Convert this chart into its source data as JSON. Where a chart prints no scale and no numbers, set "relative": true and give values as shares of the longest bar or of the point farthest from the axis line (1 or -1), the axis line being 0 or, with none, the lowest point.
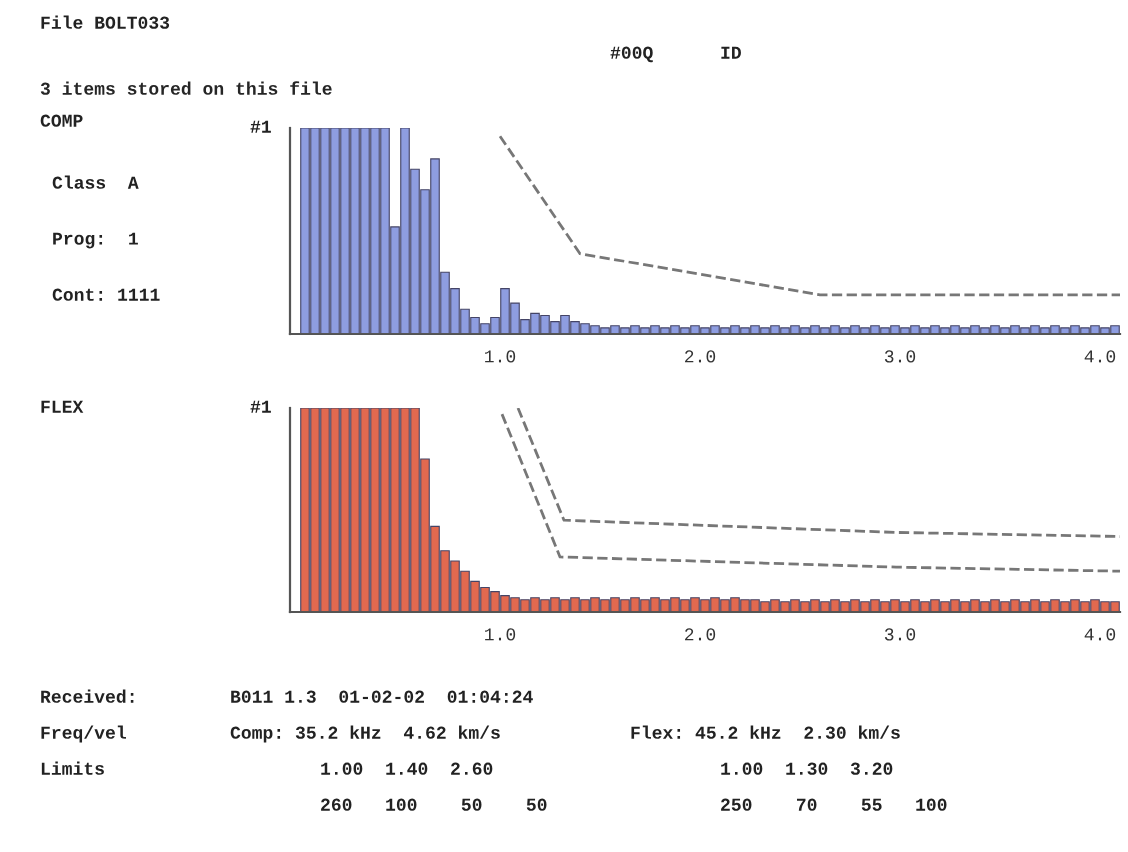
{
  "chart_data": [
    {
      "type": "bar",
      "subtitle": "3 items stored on this file",
      "relative": true,
      "xlim": [
        -0.05,
        4.1
      ],
      "xticks": [
        {
          "value": 1,
          "label": "1.0"
        },
        {
          "value": 2,
          "label": "2.0"
        },
        {
          "value": 3,
          "label": "3.0"
        },
        {
          "value": 4,
          "label": "4.0"
        }
      ],
      "grid": false,
      "legend": false,
      "annotations": [
        "File BOLT033",
        "#00Q",
        "ID",
        "COMP",
        "Class  A",
        "Prog:  1",
        "Cont: 1111",
        "#1"
      ],
      "series": [
        {
          "color": "#8e9de0",
          "x": [
            0.025,
            0.075,
            0.125,
            0.175,
            0.225,
            0.275,
            0.325,
            0.375,
            0.425,
            0.475,
            0.525,
            0.575,
            0.625,
            0.675,
            0.725,
            0.775,
            0.825,
            0.875,
            0.925,
            0.975,
            1.025,
            1.075,
            1.125,
            1.175,
            1.225,
            1.275,
            1.325,
            1.375,
            1.425,
            1.475,
            1.525,
            1.575,
            1.625,
            1.675,
            1.725,
            1.775,
            1.825,
            1.875,
            1.925,
            1.975,
            2.025,
            2.075,
            2.125,
            2.175,
            2.225,
            2.275,
            2.325,
            2.375,
            2.425,
            2.475,
            2.525,
            2.575,
            2.625,
            2.675,
            2.725,
            2.775,
            2.825,
            2.875,
            2.925,
            2.975,
            3.025,
            3.075,
            3.125,
            3.175,
            3.225,
            3.275,
            3.325,
            3.375,
            3.425,
            3.475,
            3.525,
            3.575,
            3.625,
            3.675,
            3.725,
            3.775,
            3.825,
            3.875,
            3.925,
            3.975,
            4.025,
            4.075
          ],
          "values": [
            1,
            1,
            1,
            1,
            1,
            1,
            1,
            1,
            1,
            0.52,
            1,
            0.8,
            0.7,
            0.85,
            0.3,
            0.22,
            0.12,
            0.08,
            0.05,
            0.08,
            0.22,
            0.15,
            0.07,
            0.1,
            0.09,
            0.06,
            0.09,
            0.06,
            0.05,
            0.04,
            0.03,
            0.04,
            0.03,
            0.04,
            0.03,
            0.04,
            0.03,
            0.04,
            0.03,
            0.04,
            0.03,
            0.04,
            0.03,
            0.04,
            0.03,
            0.04,
            0.03,
            0.04,
            0.03,
            0.04,
            0.03,
            0.04,
            0.03,
            0.04,
            0.03,
            0.04,
            0.03,
            0.04,
            0.03,
            0.04,
            0.03,
            0.04,
            0.03,
            0.04,
            0.03,
            0.04,
            0.03,
            0.04,
            0.03,
            0.04,
            0.03,
            0.04,
            0.03,
            0.04,
            0.03,
            0.04,
            0.03,
            0.04,
            0.03,
            0.04,
            0.03,
            0.04
          ]
        },
        {
          "type": "line",
          "color": "#777777",
          "line_style": "dashed",
          "x": [
            1.0,
            1.4,
            2.6,
            4.1
          ],
          "values": [
            0.96,
            0.39,
            0.19,
            0.19
          ]
        }
      ]
    },
    {
      "type": "bar",
      "relative": true,
      "xlim": [
        -0.05,
        4.1
      ],
      "xticks": [
        {
          "value": 1,
          "label": "1.0"
        },
        {
          "value": 2,
          "label": "2.0"
        },
        {
          "value": 3,
          "label": "3.0"
        },
        {
          "value": 4,
          "label": "4.0"
        }
      ],
      "grid": false,
      "legend": false,
      "annotations": [
        "FLEX",
        "#1",
        "Received:",
        "B011 1.3  01-02-02  01:04:24",
        "Freq/vel",
        "Comp: 35.2 kHz  4.62 km/s",
        "Flex: 45.2 kHz  2.30 km/s",
        "Limits",
        "1.00  1.40  2.60",
        "1.00  1.30  3.20",
        "260   100    50    50",
        "250    70    55   100"
      ],
      "series": [
        {
          "color": "#e2694f",
          "x": [
            0.025,
            0.075,
            0.125,
            0.175,
            0.225,
            0.275,
            0.325,
            0.375,
            0.425,
            0.475,
            0.525,
            0.575,
            0.625,
            0.675,
            0.725,
            0.775,
            0.825,
            0.875,
            0.925,
            0.975,
            1.025,
            1.075,
            1.125,
            1.175,
            1.225,
            1.275,
            1.325,
            1.375,
            1.425,
            1.475,
            1.525,
            1.575,
            1.625,
            1.675,
            1.725,
            1.775,
            1.825,
            1.875,
            1.925,
            1.975,
            2.025,
            2.075,
            2.125,
            2.175,
            2.225,
            2.275,
            2.325,
            2.375,
            2.425,
            2.475,
            2.525,
            2.575,
            2.625,
            2.675,
            2.725,
            2.775,
            2.825,
            2.875,
            2.925,
            2.975,
            3.025,
            3.075,
            3.125,
            3.175,
            3.225,
            3.275,
            3.325,
            3.375,
            3.425,
            3.475,
            3.525,
            3.575,
            3.625,
            3.675,
            3.725,
            3.775,
            3.825,
            3.875,
            3.925,
            3.975,
            4.025,
            4.075
          ],
          "values": [
            1,
            1,
            1,
            1,
            1,
            1,
            1,
            1,
            1,
            1,
            1,
            1,
            0.75,
            0.42,
            0.3,
            0.25,
            0.2,
            0.15,
            0.12,
            0.1,
            0.08,
            0.07,
            0.06,
            0.07,
            0.06,
            0.07,
            0.06,
            0.07,
            0.06,
            0.07,
            0.06,
            0.07,
            0.06,
            0.07,
            0.06,
            0.07,
            0.06,
            0.07,
            0.06,
            0.07,
            0.06,
            0.07,
            0.06,
            0.07,
            0.06,
            0.06,
            0.05,
            0.06,
            0.05,
            0.06,
            0.05,
            0.06,
            0.05,
            0.06,
            0.05,
            0.06,
            0.05,
            0.06,
            0.05,
            0.06,
            0.05,
            0.06,
            0.05,
            0.06,
            0.05,
            0.06,
            0.05,
            0.06,
            0.05,
            0.06,
            0.05,
            0.06,
            0.05,
            0.06,
            0.05,
            0.06,
            0.05,
            0.06,
            0.05,
            0.06,
            0.05,
            0.05
          ]
        },
        {
          "type": "line",
          "color": "#777777",
          "line_style": "dashed",
          "x": [
            1.09,
            1.32,
            2.98,
            4.1
          ],
          "values": [
            1.0,
            0.45,
            0.39,
            0.37
          ]
        },
        {
          "type": "line",
          "color": "#777777",
          "line_style": "dashed",
          "x": [
            1.01,
            1.3,
            2.98,
            4.1
          ],
          "values": [
            0.97,
            0.27,
            0.22,
            0.2
          ]
        }
      ]
    }
  ]
}
